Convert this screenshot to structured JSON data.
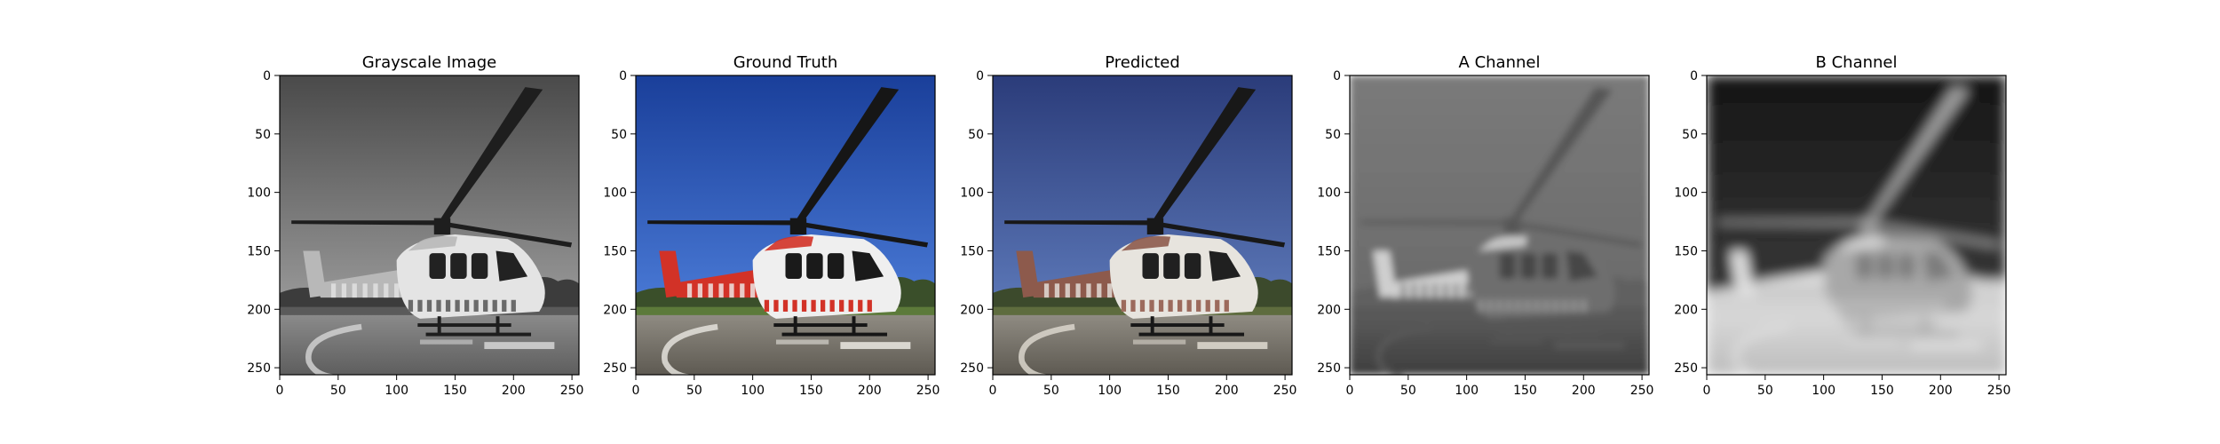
{
  "figure": {
    "panels": [
      {
        "title": "Grayscale Image",
        "kind": "grayscale"
      },
      {
        "title": "Ground Truth",
        "kind": "color"
      },
      {
        "title": "Predicted",
        "kind": "predicted"
      },
      {
        "title": "A Channel",
        "kind": "a_channel"
      },
      {
        "title": "B Channel",
        "kind": "b_channel"
      }
    ],
    "x_ticks": [
      "0",
      "50",
      "100",
      "150",
      "200",
      "250"
    ],
    "y_ticks": [
      "0",
      "50",
      "100",
      "150",
      "200",
      "250"
    ],
    "image_size": [
      256,
      256
    ]
  },
  "colors": {
    "sky_blue": "#2d5fbf",
    "sky_deep": "#1a3f9a",
    "ambulance_red": "#d23227",
    "helipad": "#8a847a",
    "trees": "#3a4f2a",
    "grass": "#5c7a3a"
  },
  "icons": [
    "helicopter-picture"
  ]
}
